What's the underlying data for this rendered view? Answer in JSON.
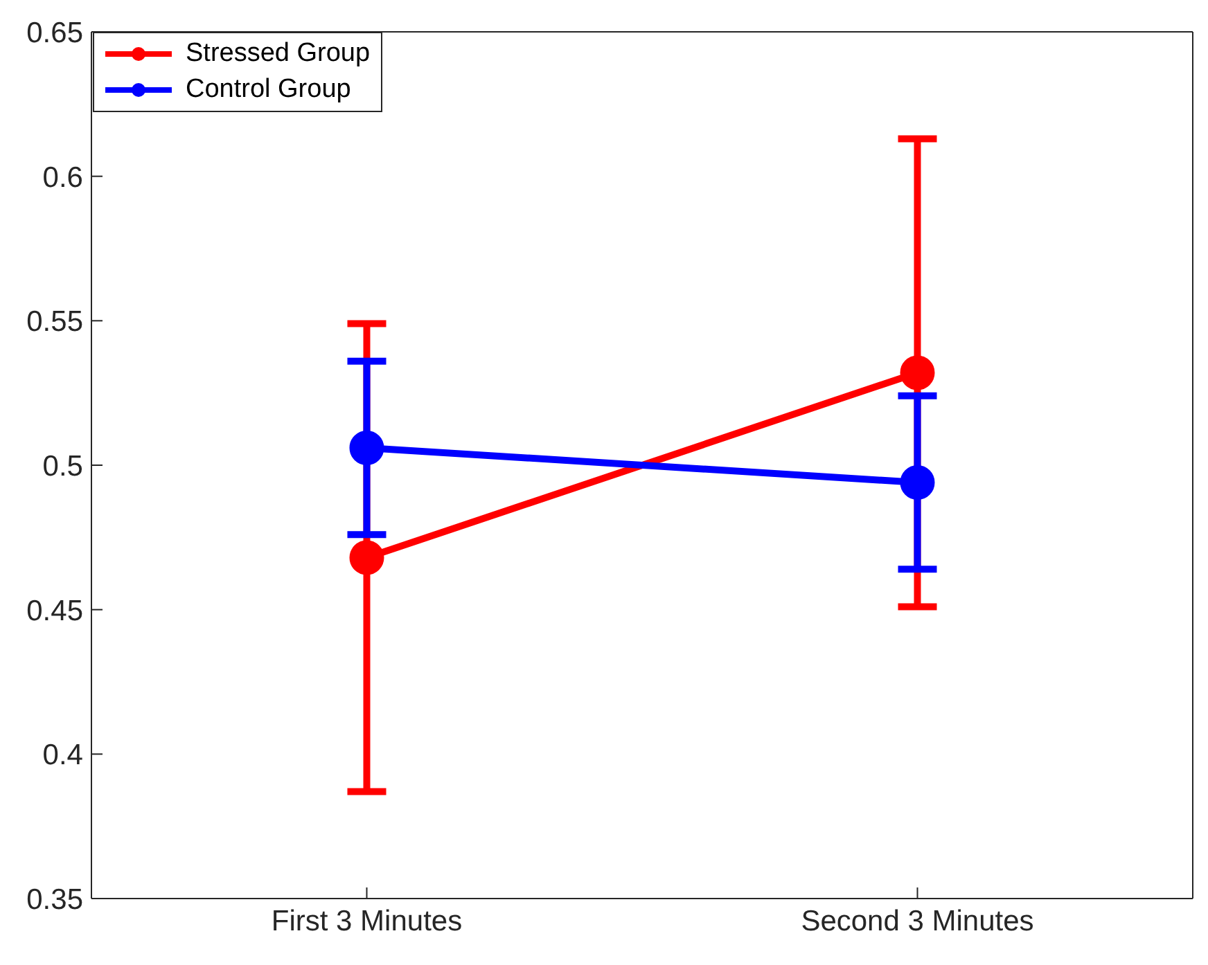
{
  "chart_data": {
    "type": "line",
    "categories": [
      "First 3 Minutes",
      "Second 3 Minutes"
    ],
    "ylim": [
      0.35,
      0.65
    ],
    "yticks": [
      0.35,
      0.4,
      0.45,
      0.5,
      0.55,
      0.6,
      0.65
    ],
    "series": [
      {
        "name": "Stressed Group",
        "color": "#ff0000",
        "values": [
          0.468,
          0.532
        ],
        "errors": [
          0.081,
          0.081
        ]
      },
      {
        "name": "Control Group",
        "color": "#0000ff",
        "values": [
          0.506,
          0.494
        ],
        "errors": [
          0.03,
          0.03
        ]
      }
    ],
    "marker": "circle",
    "line_style": "solid",
    "grid": false,
    "legend": "top left"
  }
}
